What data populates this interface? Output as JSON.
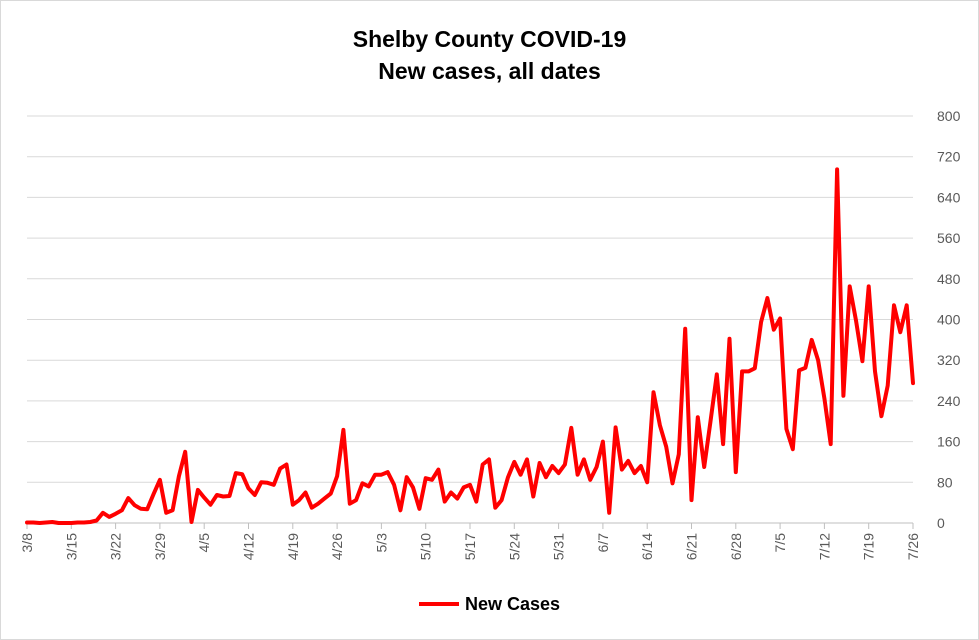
{
  "chart_data": {
    "type": "line",
    "title": "Shelby County COVID-19",
    "subtitle": "New cases, all dates",
    "ylim": [
      0,
      800
    ],
    "yticks": [
      0,
      80,
      160,
      240,
      320,
      400,
      480,
      560,
      640,
      720,
      800
    ],
    "y_axis_position": "right",
    "grid": "horizontal",
    "legend": "bottom",
    "x_tick_labels": [
      "3/8",
      "3/15",
      "3/22",
      "3/29",
      "4/5",
      "4/12",
      "4/19",
      "4/26",
      "5/3",
      "5/10",
      "5/17",
      "5/24",
      "5/31",
      "6/7",
      "6/14",
      "6/21",
      "6/28",
      "7/5",
      "7/12",
      "7/19",
      "7/26"
    ],
    "x_start": "3/8",
    "x_end": "7/26",
    "series": [
      {
        "name": "New Cases",
        "color": "#ff0000",
        "values": [
          1,
          1,
          0,
          1,
          2,
          0,
          0,
          0,
          1,
          1,
          2,
          5,
          20,
          12,
          18,
          25,
          49,
          35,
          28,
          27,
          57,
          85,
          20,
          25,
          92,
          140,
          2,
          65,
          50,
          36,
          55,
          52,
          53,
          98,
          96,
          68,
          55,
          80,
          79,
          75,
          107,
          115,
          36,
          45,
          60,
          30,
          38,
          48,
          58,
          92,
          183,
          38,
          45,
          78,
          72,
          95,
          95,
          100,
          75,
          25,
          90,
          70,
          28,
          88,
          85,
          105,
          42,
          60,
          48,
          70,
          75,
          42,
          115,
          125,
          30,
          45,
          90,
          120,
          95,
          125,
          52,
          118,
          90,
          112,
          98,
          115,
          187,
          95,
          125,
          85,
          110,
          160,
          20,
          188,
          105,
          122,
          98,
          112,
          80,
          257,
          192,
          150,
          78,
          135,
          382,
          45,
          208,
          110,
          200,
          292,
          155,
          362,
          100,
          298,
          298,
          304,
          395,
          442,
          380,
          402,
          185,
          145,
          300,
          305,
          360,
          320,
          245,
          155,
          695,
          250,
          465,
          398,
          318,
          465,
          298,
          210,
          270,
          428,
          375,
          428,
          275
        ]
      }
    ]
  },
  "legend": {
    "label": "New Cases"
  }
}
